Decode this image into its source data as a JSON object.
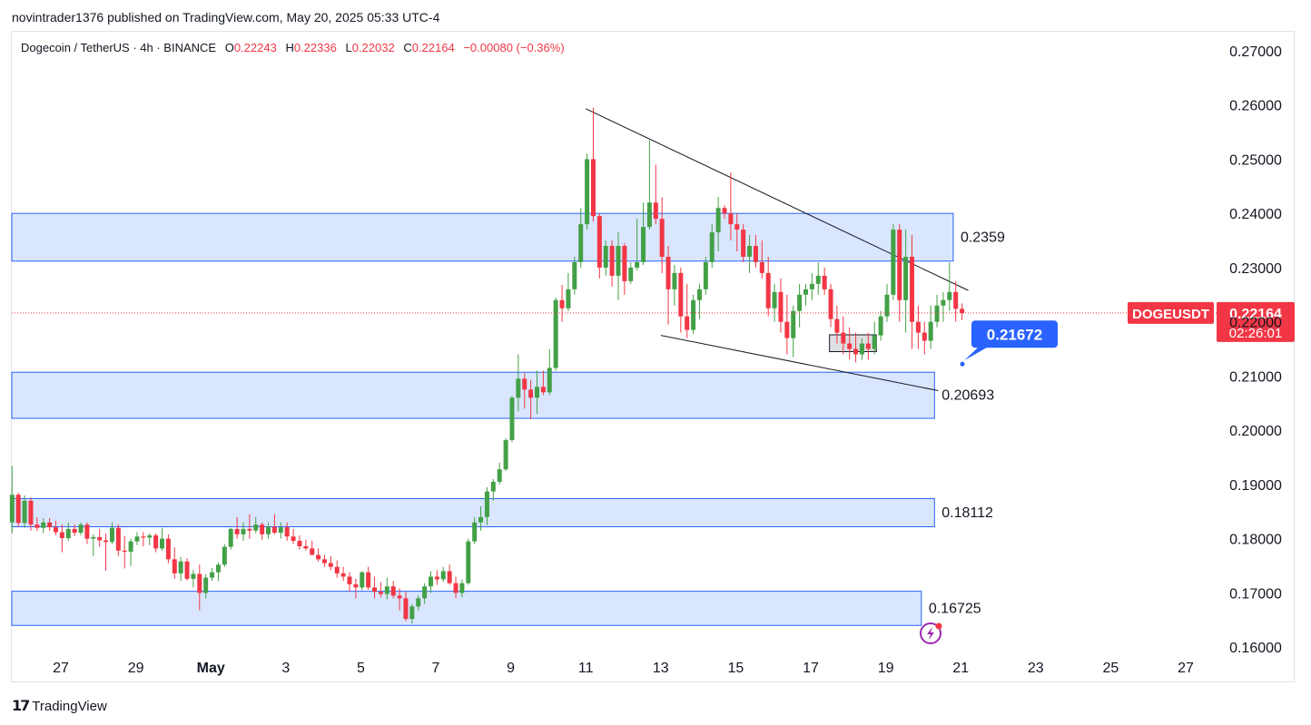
{
  "header": {
    "published_by": "novintrader1376 published on TradingView.com, May 20, 2025 05:33 UTC-4"
  },
  "legend": {
    "symbol": "Dogecoin / TetherUS · 4h · BINANCE",
    "o_label": "O",
    "o_value": "0.22243",
    "h_label": "H",
    "h_value": "0.22336",
    "l_label": "L",
    "l_value": "0.22032",
    "c_label": "C",
    "c_value": "0.22164",
    "change": "−0.00080 (−0.36%)"
  },
  "footer": {
    "brand": "TradingView"
  },
  "colors": {
    "up": "#089981",
    "up_body": "#43a047",
    "down": "#f23645",
    "zone_fill": "#d5e3fd",
    "zone_border": "#2962ff",
    "label_blue": "#2962ff",
    "price_red": "#f23645"
  },
  "chart_data": {
    "type": "candlestick",
    "symbol": "DOGEUSDT",
    "timeframe": "4h",
    "y_ticks": [
      "0.27000",
      "0.26000",
      "0.25000",
      "0.24000",
      "0.23000",
      "0.22000",
      "0.21000",
      "0.20000",
      "0.19000",
      "0.18000",
      "0.17000",
      "0.16000"
    ],
    "y_range": [
      0.1535,
      0.2735
    ],
    "x_ticks": [
      {
        "label": "27",
        "day": 27
      },
      {
        "label": "29",
        "day": 29
      },
      {
        "label": "May",
        "day": 31
      },
      {
        "label": "3",
        "day": 33
      },
      {
        "label": "5",
        "day": 35
      },
      {
        "label": "7",
        "day": 37
      },
      {
        "label": "9",
        "day": 39
      },
      {
        "label": "11",
        "day": 41
      },
      {
        "label": "13",
        "day": 43
      },
      {
        "label": "15",
        "day": 45
      },
      {
        "label": "17",
        "day": 47
      },
      {
        "label": "19",
        "day": 49
      },
      {
        "label": "21",
        "day": 51
      },
      {
        "label": "23",
        "day": 53
      },
      {
        "label": "25",
        "day": 55
      },
      {
        "label": "27",
        "day": 57
      }
    ],
    "current_price": {
      "symbol_label": "DOGEUSDT",
      "price": "0.22164",
      "countdown": "02:26:01",
      "value": 0.22164
    },
    "callout": {
      "text": "0.21672",
      "value": 0.21672
    },
    "zones": [
      {
        "label": "0.2359",
        "top": 0.24,
        "bottom": 0.2312,
        "end_day": 50.8
      },
      {
        "label": "0.20693",
        "top": 0.2107,
        "bottom": 0.2022,
        "end_day": 50.3
      },
      {
        "label": "0.18112",
        "top": 0.1874,
        "bottom": 0.1822,
        "end_day": 50.3
      },
      {
        "label": "0.16725",
        "top": 0.1703,
        "bottom": 0.164,
        "end_day": 49.95
      }
    ],
    "trendlines": [
      {
        "from": [
          41.0,
          0.2593
        ],
        "to": [
          51.2,
          0.2258
        ]
      },
      {
        "from": [
          43.0,
          0.2175
        ],
        "to": [
          50.4,
          0.2073
        ]
      }
    ],
    "small_box": {
      "from_day": 47.5,
      "to_day": 48.75,
      "top": 0.2176,
      "bottom": 0.2145
    },
    "candles": [
      [
        0.183,
        0.1934,
        0.181,
        0.1881
      ],
      [
        0.1881,
        0.1885,
        0.1822,
        0.1829
      ],
      [
        0.1829,
        0.188,
        0.182,
        0.187
      ],
      [
        0.187,
        0.1876,
        0.1815,
        0.1826
      ],
      [
        0.1826,
        0.184,
        0.1814,
        0.182
      ],
      [
        0.182,
        0.1838,
        0.181,
        0.183
      ],
      [
        0.183,
        0.1838,
        0.1815,
        0.1821
      ],
      [
        0.1821,
        0.1833,
        0.1807,
        0.1812
      ],
      [
        0.1812,
        0.1826,
        0.1775,
        0.1801
      ],
      [
        0.1801,
        0.183,
        0.1796,
        0.1818
      ],
      [
        0.1818,
        0.1826,
        0.1805,
        0.1811
      ],
      [
        0.1811,
        0.183,
        0.1806,
        0.1826
      ],
      [
        0.1826,
        0.183,
        0.179,
        0.18
      ],
      [
        0.18,
        0.1808,
        0.1768,
        0.1803
      ],
      [
        0.1803,
        0.1818,
        0.1785,
        0.1797
      ],
      [
        0.1797,
        0.181,
        0.1741,
        0.1794
      ],
      [
        0.1794,
        0.183,
        0.179,
        0.182
      ],
      [
        0.182,
        0.1826,
        0.1768,
        0.1778
      ],
      [
        0.1778,
        0.1805,
        0.1745,
        0.1776
      ],
      [
        0.1776,
        0.18,
        0.175,
        0.1795
      ],
      [
        0.1795,
        0.1812,
        0.1788,
        0.1804
      ],
      [
        0.1804,
        0.1812,
        0.1786,
        0.1802
      ],
      [
        0.1802,
        0.181,
        0.1788,
        0.1806
      ],
      [
        0.1806,
        0.181,
        0.1775,
        0.1782
      ],
      [
        0.1782,
        0.182,
        0.1778,
        0.18
      ],
      [
        0.18,
        0.1808,
        0.1755,
        0.1762
      ],
      [
        0.1762,
        0.1784,
        0.1726,
        0.1736
      ],
      [
        0.1736,
        0.1766,
        0.1722,
        0.1758
      ],
      [
        0.1758,
        0.1764,
        0.1723,
        0.1726
      ],
      [
        0.1726,
        0.1742,
        0.171,
        0.1735
      ],
      [
        0.1735,
        0.1752,
        0.1668,
        0.17
      ],
      [
        0.17,
        0.1735,
        0.169,
        0.1728
      ],
      [
        0.1728,
        0.1746,
        0.1722,
        0.1738
      ],
      [
        0.1738,
        0.1756,
        0.1722,
        0.1752
      ],
      [
        0.1752,
        0.179,
        0.1748,
        0.1785
      ],
      [
        0.1785,
        0.182,
        0.178,
        0.1818
      ],
      [
        0.1818,
        0.184,
        0.18,
        0.1808
      ],
      [
        0.1808,
        0.183,
        0.1796,
        0.1818
      ],
      [
        0.1818,
        0.1845,
        0.18,
        0.1815
      ],
      [
        0.1815,
        0.184,
        0.181,
        0.1826
      ],
      [
        0.1826,
        0.183,
        0.1798,
        0.1808
      ],
      [
        0.1808,
        0.183,
        0.18,
        0.1822
      ],
      [
        0.1822,
        0.1845,
        0.1808,
        0.1811
      ],
      [
        0.1811,
        0.183,
        0.18,
        0.1821
      ],
      [
        0.1821,
        0.183,
        0.1796,
        0.1804
      ],
      [
        0.1804,
        0.1818,
        0.179,
        0.1796
      ],
      [
        0.1796,
        0.1806,
        0.178,
        0.1786
      ],
      [
        0.1786,
        0.1798,
        0.1778,
        0.1782
      ],
      [
        0.1782,
        0.1796,
        0.1775,
        0.177
      ],
      [
        0.177,
        0.1782,
        0.1758,
        0.1762
      ],
      [
        0.1762,
        0.177,
        0.1748,
        0.1755
      ],
      [
        0.1755,
        0.1768,
        0.1742,
        0.1748
      ],
      [
        0.1748,
        0.176,
        0.1728,
        0.1736
      ],
      [
        0.1736,
        0.1748,
        0.1722,
        0.173
      ],
      [
        0.173,
        0.1738,
        0.1702,
        0.1716
      ],
      [
        0.1716,
        0.1726,
        0.169,
        0.171
      ],
      [
        0.171,
        0.174,
        0.1705,
        0.1738
      ],
      [
        0.1738,
        0.1748,
        0.1706,
        0.171
      ],
      [
        0.171,
        0.173,
        0.169,
        0.1702
      ],
      [
        0.1702,
        0.172,
        0.1692,
        0.1698
      ],
      [
        0.1698,
        0.1728,
        0.1688,
        0.1712
      ],
      [
        0.1712,
        0.1722,
        0.169,
        0.1695
      ],
      [
        0.1695,
        0.1708,
        0.1668,
        0.169
      ],
      [
        0.169,
        0.1702,
        0.1648,
        0.1652
      ],
      [
        0.1652,
        0.168,
        0.1643,
        0.1675
      ],
      [
        0.1675,
        0.1695,
        0.1668,
        0.169
      ],
      [
        0.169,
        0.1718,
        0.168,
        0.1712
      ],
      [
        0.1712,
        0.174,
        0.17,
        0.173
      ],
      [
        0.173,
        0.1742,
        0.1715,
        0.1725
      ],
      [
        0.1725,
        0.1748,
        0.172,
        0.174
      ],
      [
        0.174,
        0.1752,
        0.1715,
        0.1718
      ],
      [
        0.1718,
        0.173,
        0.169,
        0.17
      ],
      [
        0.17,
        0.1725,
        0.1692,
        0.1718
      ],
      [
        0.1718,
        0.18,
        0.1715,
        0.1795
      ],
      [
        0.1795,
        0.184,
        0.179,
        0.183
      ],
      [
        0.183,
        0.186,
        0.1815,
        0.184
      ],
      [
        0.184,
        0.1895,
        0.1825,
        0.1887
      ],
      [
        0.1887,
        0.191,
        0.187,
        0.1905
      ],
      [
        0.1905,
        0.194,
        0.19,
        0.1928
      ],
      [
        0.1928,
        0.1985,
        0.1925,
        0.1982
      ],
      [
        0.1982,
        0.2063,
        0.1978,
        0.206
      ],
      [
        0.206,
        0.214,
        0.2035,
        0.2095
      ],
      [
        0.2095,
        0.2105,
        0.204,
        0.2075
      ],
      [
        0.2075,
        0.2093,
        0.202,
        0.206
      ],
      [
        0.206,
        0.211,
        0.203,
        0.208
      ],
      [
        0.208,
        0.211,
        0.2065,
        0.207
      ],
      [
        0.207,
        0.215,
        0.2065,
        0.2115
      ],
      [
        0.2115,
        0.2245,
        0.211,
        0.224
      ],
      [
        0.224,
        0.2268,
        0.22,
        0.2225
      ],
      [
        0.2225,
        0.229,
        0.222,
        0.226
      ],
      [
        0.226,
        0.232,
        0.225,
        0.231
      ],
      [
        0.231,
        0.241,
        0.23,
        0.238
      ],
      [
        0.238,
        0.251,
        0.237,
        0.25
      ],
      [
        0.25,
        0.2595,
        0.2385,
        0.2395
      ],
      [
        0.2395,
        0.24,
        0.228,
        0.23
      ],
      [
        0.23,
        0.235,
        0.2285,
        0.234
      ],
      [
        0.234,
        0.235,
        0.2265,
        0.2285
      ],
      [
        0.2285,
        0.2365,
        0.224,
        0.234
      ],
      [
        0.234,
        0.2345,
        0.225,
        0.2275
      ],
      [
        0.2275,
        0.231,
        0.227,
        0.23
      ],
      [
        0.23,
        0.239,
        0.2295,
        0.231
      ],
      [
        0.231,
        0.242,
        0.2305,
        0.2375
      ],
      [
        0.2375,
        0.2535,
        0.237,
        0.242
      ],
      [
        0.242,
        0.249,
        0.238,
        0.239
      ],
      [
        0.239,
        0.243,
        0.229,
        0.232
      ],
      [
        0.232,
        0.234,
        0.2195,
        0.226
      ],
      [
        0.226,
        0.2305,
        0.223,
        0.229
      ],
      [
        0.229,
        0.23,
        0.218,
        0.221
      ],
      [
        0.221,
        0.227,
        0.217,
        0.2185
      ],
      [
        0.2185,
        0.225,
        0.2178,
        0.224
      ],
      [
        0.224,
        0.227,
        0.2205,
        0.226
      ],
      [
        0.226,
        0.232,
        0.225,
        0.231
      ],
      [
        0.231,
        0.238,
        0.23,
        0.2365
      ],
      [
        0.2365,
        0.243,
        0.233,
        0.241
      ],
      [
        0.241,
        0.2415,
        0.239,
        0.24
      ],
      [
        0.24,
        0.2475,
        0.235,
        0.238
      ],
      [
        0.238,
        0.24,
        0.233,
        0.237
      ],
      [
        0.237,
        0.238,
        0.231,
        0.232
      ],
      [
        0.232,
        0.236,
        0.229,
        0.234
      ],
      [
        0.234,
        0.236,
        0.23,
        0.231
      ],
      [
        0.231,
        0.235,
        0.228,
        0.229
      ],
      [
        0.229,
        0.232,
        0.221,
        0.2225
      ],
      [
        0.2225,
        0.227,
        0.22,
        0.2255
      ],
      [
        0.2255,
        0.228,
        0.218,
        0.22
      ],
      [
        0.22,
        0.225,
        0.214,
        0.217
      ],
      [
        0.217,
        0.223,
        0.2135,
        0.222
      ],
      [
        0.222,
        0.227,
        0.219,
        0.225
      ],
      [
        0.225,
        0.227,
        0.223,
        0.226
      ],
      [
        0.226,
        0.229,
        0.224,
        0.227
      ],
      [
        0.227,
        0.231,
        0.225,
        0.2285
      ],
      [
        0.2285,
        0.23,
        0.225,
        0.226
      ],
      [
        0.226,
        0.227,
        0.219,
        0.2205
      ],
      [
        0.2205,
        0.223,
        0.216,
        0.218
      ],
      [
        0.218,
        0.221,
        0.214,
        0.216
      ],
      [
        0.216,
        0.219,
        0.213,
        0.215
      ],
      [
        0.215,
        0.218,
        0.2125,
        0.214
      ],
      [
        0.214,
        0.217,
        0.213,
        0.216
      ],
      [
        0.216,
        0.218,
        0.213,
        0.215
      ],
      [
        0.215,
        0.22,
        0.214,
        0.2175
      ],
      [
        0.2175,
        0.222,
        0.2165,
        0.221
      ],
      [
        0.221,
        0.227,
        0.22,
        0.225
      ],
      [
        0.225,
        0.238,
        0.224,
        0.237
      ],
      [
        0.237,
        0.238,
        0.22,
        0.224
      ],
      [
        0.224,
        0.237,
        0.218,
        0.232
      ],
      [
        0.232,
        0.236,
        0.215,
        0.22
      ],
      [
        0.22,
        0.223,
        0.215,
        0.218
      ],
      [
        0.218,
        0.22,
        0.214,
        0.2165
      ],
      [
        0.2165,
        0.223,
        0.215,
        0.22
      ],
      [
        0.22,
        0.225,
        0.219,
        0.223
      ],
      [
        0.223,
        0.2255,
        0.22,
        0.224
      ],
      [
        0.224,
        0.231,
        0.222,
        0.2255
      ],
      [
        0.2255,
        0.2275,
        0.22,
        0.2224
      ],
      [
        0.2224,
        0.2234,
        0.2203,
        0.2216
      ]
    ]
  }
}
